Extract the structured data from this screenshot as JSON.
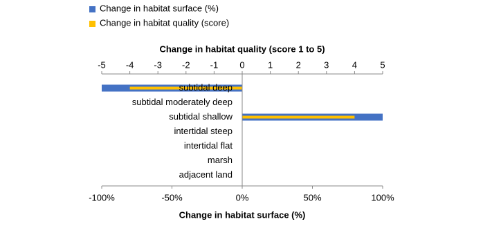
{
  "chart_data": {
    "type": "bar",
    "orientation": "horizontal",
    "categories": [
      "subtidal deep",
      "subtidal moderately deep",
      "subtidal shallow",
      "intertidal steep",
      "intertidal flat",
      "marsh",
      "adjacent land"
    ],
    "series": [
      {
        "name": "Change in habitat surface (%)",
        "color": "#4472c4",
        "values": [
          -100,
          0,
          100,
          0,
          0,
          0,
          0
        ]
      },
      {
        "name": "Change in habitat quality (score)",
        "color": "#ffc000",
        "axis": "x2",
        "values": [
          -4,
          0,
          4,
          0,
          0,
          0,
          0
        ]
      }
    ],
    "xlabel": "Change in habitat surface (%)",
    "x2label": "Change in habitat quality (score 1 to 5)",
    "xlim": [
      -100,
      100
    ],
    "xticks": [
      {
        "value": -100,
        "label": "-100%"
      },
      {
        "value": -50,
        "label": "-50%"
      },
      {
        "value": 0,
        "label": "0%"
      },
      {
        "value": 50,
        "label": "50%"
      },
      {
        "value": 100,
        "label": "100%"
      }
    ],
    "x2lim": [
      -5,
      5
    ],
    "x2ticks": [
      -5,
      -4,
      -3,
      -2,
      -1,
      0,
      1,
      2,
      3,
      4,
      5
    ],
    "grid": false,
    "legend": "top-left"
  }
}
